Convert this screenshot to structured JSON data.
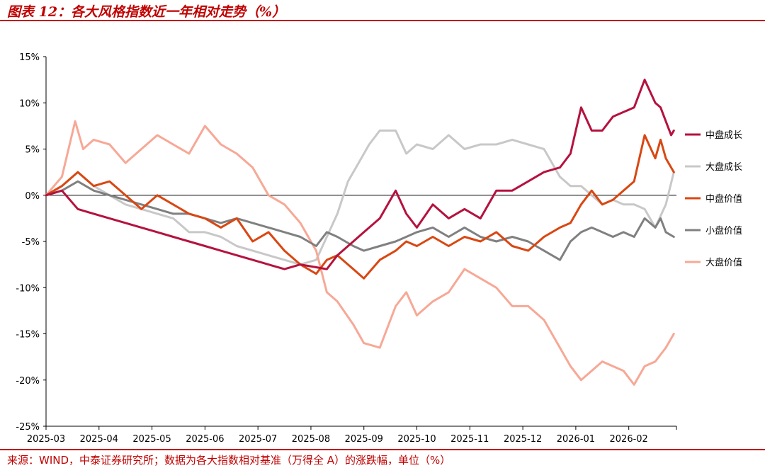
{
  "title": "图表 12：各大风格指数近一年相对走势（%）",
  "source": "来源：WIND，中泰证券研究所；数据为各大指数相对基准（万得全 A）的涨跌幅，单位（%）",
  "colors": {
    "title": "#c00000",
    "mid_growth": "#b5123e",
    "large_growth": "#c8c8c8",
    "mid_value": "#d94712",
    "small_value": "#808080",
    "large_value": "#f7a896",
    "axis": "#000000"
  },
  "chart_data": {
    "type": "line",
    "title": "各大风格指数近一年相对走势（%）",
    "xlabel": "",
    "ylabel": "",
    "ylim": [
      -25,
      15
    ],
    "yticks": [
      15,
      10,
      5,
      0,
      -5,
      -10,
      -15,
      -20,
      -25
    ],
    "ytick_labels": [
      "15%",
      "10%",
      "5%",
      "0%",
      "-5%",
      "-10%",
      "-15%",
      "-20%",
      "-25%"
    ],
    "xlim": [
      0,
      11.9
    ],
    "xtick_labels": [
      "2025-03",
      "2025-04",
      "2025-05",
      "2025-06",
      "2025-07",
      "2025-08",
      "2025-09",
      "2025-10",
      "2025-11",
      "2025-12",
      "2026-01",
      "2026-02"
    ],
    "legend_position": "right",
    "series": [
      {
        "name": "中盘成长",
        "color_key": "mid_growth",
        "x": [
          0,
          0.3,
          0.6,
          0.9,
          1.2,
          1.5,
          1.8,
          2.1,
          2.4,
          2.7,
          3.0,
          3.3,
          3.6,
          3.9,
          4.2,
          4.5,
          4.8,
          5.1,
          5.3,
          5.5,
          5.8,
          6.0,
          6.3,
          6.6,
          6.8,
          7.0,
          7.3,
          7.6,
          7.9,
          8.2,
          8.5,
          8.8,
          9.1,
          9.4,
          9.7,
          9.9,
          10.1,
          10.3,
          10.5,
          10.7,
          10.9,
          11.1,
          11.3,
          11.5,
          11.6,
          11.7,
          11.8,
          11.85
        ],
        "values": [
          0,
          0.5,
          -1.5,
          -2.0,
          -2.5,
          -3.0,
          -3.5,
          -4.0,
          -4.5,
          -5.0,
          -5.5,
          -6.0,
          -6.5,
          -7.0,
          -7.5,
          -8.0,
          -7.5,
          -7.8,
          -8.0,
          -6.5,
          -5.0,
          -4.0,
          -2.5,
          0.5,
          -2.0,
          -3.5,
          -1.0,
          -2.5,
          -1.5,
          -2.5,
          0.5,
          0.5,
          1.5,
          2.5,
          3.0,
          4.5,
          9.5,
          7.0,
          7.0,
          8.5,
          9.0,
          9.5,
          12.5,
          10.0,
          9.5,
          8.0,
          6.5,
          7.0
        ]
      },
      {
        "name": "大盘成长",
        "color_key": "large_growth",
        "x": [
          0,
          0.3,
          0.6,
          0.9,
          1.2,
          1.5,
          1.8,
          2.1,
          2.4,
          2.7,
          3.0,
          3.3,
          3.6,
          3.9,
          4.2,
          4.5,
          4.8,
          5.1,
          5.3,
          5.5,
          5.7,
          5.9,
          6.1,
          6.3,
          6.6,
          6.8,
          7.0,
          7.3,
          7.6,
          7.9,
          8.2,
          8.5,
          8.8,
          9.1,
          9.4,
          9.7,
          9.9,
          10.1,
          10.3,
          10.5,
          10.7,
          10.9,
          11.1,
          11.3,
          11.5,
          11.7,
          11.85
        ],
        "values": [
          0,
          1.0,
          2.5,
          1.0,
          0,
          -1.0,
          -1.5,
          -2.0,
          -2.5,
          -4.0,
          -4.0,
          -4.5,
          -5.5,
          -6.0,
          -6.5,
          -7.0,
          -7.5,
          -7.0,
          -4.5,
          -2.0,
          1.5,
          3.5,
          5.5,
          7.0,
          7.0,
          4.5,
          5.5,
          5.0,
          6.5,
          5.0,
          5.5,
          5.5,
          6.0,
          5.5,
          5.0,
          2.0,
          1.0,
          1.0,
          0,
          -1.0,
          -0.5,
          -1.0,
          -1.0,
          -1.5,
          -3.5,
          -1.0,
          2.5
        ]
      },
      {
        "name": "中盘价值",
        "color_key": "mid_value",
        "x": [
          0,
          0.3,
          0.6,
          0.9,
          1.2,
          1.5,
          1.8,
          2.1,
          2.4,
          2.7,
          3.0,
          3.3,
          3.6,
          3.9,
          4.2,
          4.5,
          4.8,
          5.1,
          5.3,
          5.5,
          5.8,
          6.0,
          6.3,
          6.6,
          6.8,
          7.0,
          7.3,
          7.6,
          7.9,
          8.2,
          8.5,
          8.8,
          9.1,
          9.4,
          9.7,
          9.9,
          10.1,
          10.3,
          10.5,
          10.7,
          10.9,
          11.1,
          11.3,
          11.5,
          11.6,
          11.7,
          11.85
        ],
        "values": [
          0,
          1.0,
          2.5,
          1.0,
          1.5,
          0,
          -1.5,
          0,
          -1.0,
          -2.0,
          -2.5,
          -3.5,
          -2.5,
          -5.0,
          -4.0,
          -6.0,
          -7.5,
          -8.5,
          -7.0,
          -6.5,
          -8.0,
          -9.0,
          -7.0,
          -6.0,
          -5.0,
          -5.5,
          -4.5,
          -5.5,
          -4.5,
          -5.0,
          -4.0,
          -5.5,
          -6.0,
          -4.5,
          -3.5,
          -3.0,
          -1.0,
          0.5,
          -1.0,
          -0.5,
          0.5,
          1.5,
          6.5,
          4.0,
          6.0,
          4.0,
          2.5
        ]
      },
      {
        "name": "小盘价值",
        "color_key": "small_value",
        "x": [
          0,
          0.3,
          0.6,
          0.9,
          1.2,
          1.5,
          1.8,
          2.1,
          2.4,
          2.7,
          3.0,
          3.3,
          3.6,
          3.9,
          4.2,
          4.5,
          4.8,
          5.1,
          5.3,
          5.5,
          5.8,
          6.0,
          6.3,
          6.6,
          6.8,
          7.0,
          7.3,
          7.6,
          7.9,
          8.2,
          8.5,
          8.8,
          9.1,
          9.4,
          9.7,
          9.9,
          10.1,
          10.3,
          10.5,
          10.7,
          10.9,
          11.1,
          11.3,
          11.5,
          11.6,
          11.7,
          11.85
        ],
        "values": [
          0,
          0.5,
          1.5,
          0.5,
          0,
          -0.5,
          -1.0,
          -1.5,
          -2.0,
          -2.0,
          -2.5,
          -3.0,
          -2.5,
          -3.0,
          -3.5,
          -4.0,
          -4.5,
          -5.5,
          -4.0,
          -4.5,
          -5.5,
          -6.0,
          -5.5,
          -5.0,
          -4.5,
          -4.0,
          -3.5,
          -4.5,
          -3.5,
          -4.5,
          -5.0,
          -4.5,
          -5.0,
          -6.0,
          -7.0,
          -5.0,
          -4.0,
          -3.5,
          -4.0,
          -4.5,
          -4.0,
          -4.5,
          -2.5,
          -3.5,
          -2.5,
          -4.0,
          -4.5
        ]
      },
      {
        "name": "大盘价值",
        "color_key": "large_value",
        "x": [
          0,
          0.3,
          0.55,
          0.7,
          0.9,
          1.2,
          1.5,
          1.8,
          2.1,
          2.4,
          2.7,
          3.0,
          3.3,
          3.6,
          3.9,
          4.2,
          4.5,
          4.8,
          5.1,
          5.3,
          5.5,
          5.8,
          6.0,
          6.3,
          6.6,
          6.8,
          7.0,
          7.3,
          7.6,
          7.9,
          8.2,
          8.5,
          8.8,
          9.1,
          9.4,
          9.7,
          9.9,
          10.1,
          10.3,
          10.5,
          10.7,
          10.9,
          11.1,
          11.3,
          11.5,
          11.7,
          11.85
        ],
        "values": [
          0,
          2.0,
          8.0,
          5.0,
          6.0,
          5.5,
          3.5,
          5.0,
          6.5,
          5.5,
          4.5,
          7.5,
          5.5,
          4.5,
          3.0,
          0,
          -1.0,
          -3.0,
          -6.0,
          -10.5,
          -11.5,
          -14.0,
          -16.0,
          -16.5,
          -12.0,
          -10.5,
          -13.0,
          -11.5,
          -10.5,
          -8.0,
          -9.0,
          -10.0,
          -12.0,
          -12.0,
          -13.5,
          -16.5,
          -18.5,
          -20.0,
          -19.0,
          -18.0,
          -18.5,
          -19.0,
          -20.5,
          -18.5,
          -18.0,
          -16.5,
          -15.0
        ]
      }
    ]
  }
}
